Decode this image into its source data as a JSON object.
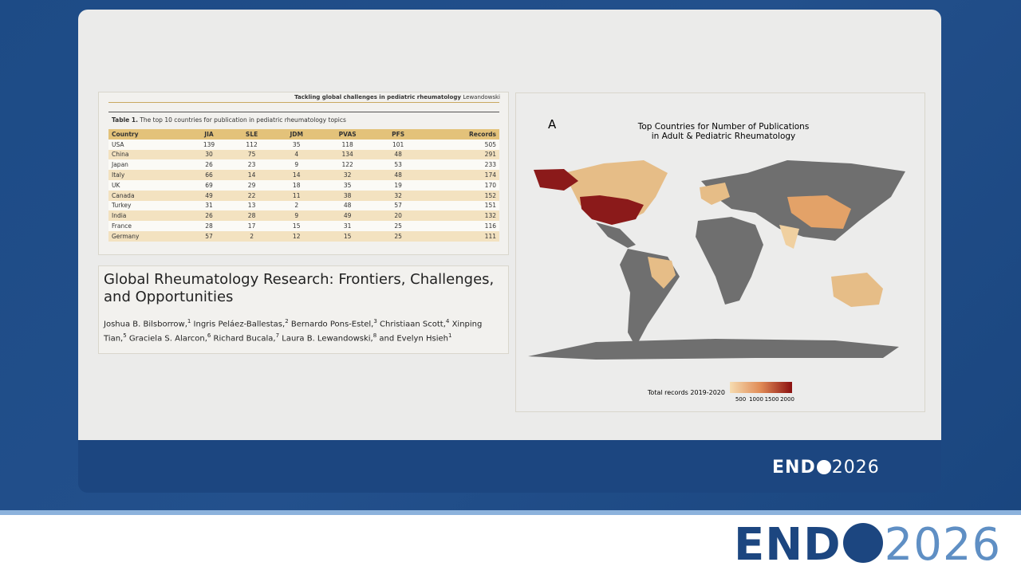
{
  "journal_header": {
    "title": "Tackling global challenges in pediatric rheumatology",
    "author": "Lewandowski"
  },
  "table": {
    "label": "Table 1.",
    "caption": "The top 10 countries for publication in pediatric rheumatology topics",
    "columns": [
      "Country",
      "JIA",
      "SLE",
      "JDM",
      "PVAS",
      "PFS",
      "Records"
    ],
    "rows": [
      [
        "USA",
        139,
        112,
        35,
        118,
        101,
        505
      ],
      [
        "China",
        30,
        75,
        4,
        134,
        48,
        291
      ],
      [
        "Japan",
        26,
        23,
        9,
        122,
        53,
        233
      ],
      [
        "Italy",
        66,
        14,
        14,
        32,
        48,
        174
      ],
      [
        "UK",
        69,
        29,
        18,
        35,
        19,
        170
      ],
      [
        "Canada",
        49,
        22,
        11,
        38,
        32,
        152
      ],
      [
        "Turkey",
        31,
        13,
        2,
        48,
        57,
        151
      ],
      [
        "India",
        26,
        28,
        9,
        49,
        20,
        132
      ],
      [
        "France",
        28,
        17,
        15,
        31,
        25,
        116
      ],
      [
        "Germany",
        57,
        2,
        12,
        15,
        25,
        111
      ]
    ]
  },
  "paper": {
    "title": "Global Rheumatology Research: Frontiers, Challenges, and Opportunities",
    "authors": [
      {
        "name": "Joshua B. Bilsborrow,",
        "aff": "1"
      },
      {
        "name": "Ingris Peláez-Ballestas,",
        "aff": "2"
      },
      {
        "name": "Bernardo Pons-Estel,",
        "aff": "3"
      },
      {
        "name": "Christiaan Scott,",
        "aff": "4"
      },
      {
        "name": "Xinping Tian,",
        "aff": "5"
      },
      {
        "name": "Graciela S. Alarcon,",
        "aff": "6"
      },
      {
        "name": "Richard Bucala,",
        "aff": "7"
      },
      {
        "name": "Laura B. Lewandowski,",
        "aff": "8"
      },
      {
        "name": "and Evelyn Hsieh",
        "aff": "1"
      }
    ]
  },
  "map": {
    "panel_label": "A",
    "title": [
      "Top Countries for Number of Publications",
      "in Adult & Pediatric Rheumatology"
    ],
    "legend_title": "Total records 2019-2020",
    "legend_ticks": [
      500,
      1000,
      1500,
      2000
    ]
  },
  "logo": {
    "left": "END",
    "right": "2026"
  }
}
